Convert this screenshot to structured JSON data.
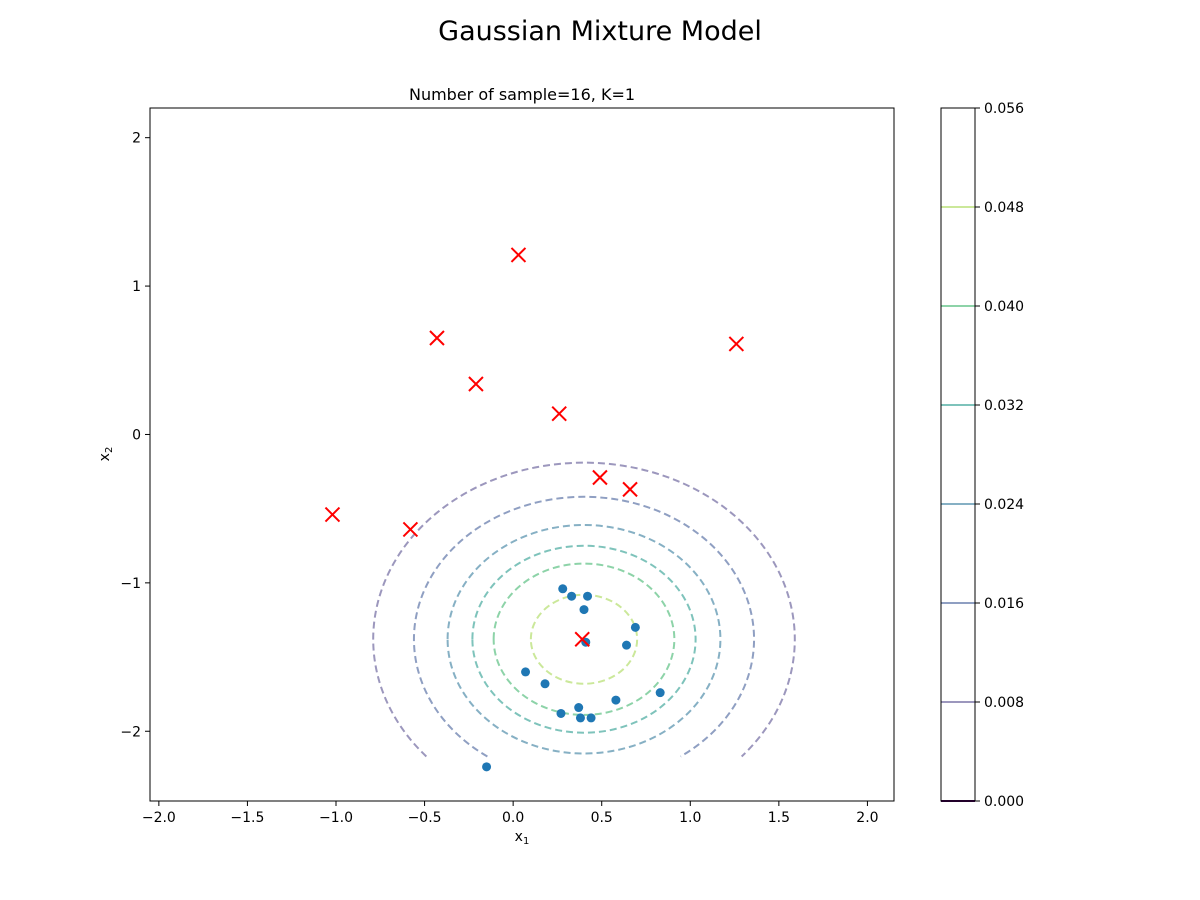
{
  "figure": {
    "suptitle": "Gaussian Mixture Model"
  },
  "chart_data": {
    "type": "scatter",
    "title": "Number of sample=16, K=1",
    "xlabel": "x1",
    "ylabel": "x2",
    "xlabel_main": "x",
    "xlabel_sub": "1",
    "ylabel_main": "x",
    "ylabel_sub": "2",
    "xlim": [
      -2.05,
      2.15
    ],
    "ylim": [
      -2.47,
      2.2
    ],
    "xticks": [
      -2.0,
      -1.5,
      -1.0,
      -0.5,
      0.0,
      0.5,
      1.0,
      1.5,
      2.0
    ],
    "xtick_labels": [
      "−2.0",
      "−1.5",
      "−1.0",
      "−0.5",
      "0.0",
      "0.5",
      "1.0",
      "1.5",
      "2.0"
    ],
    "yticks": [
      -2,
      -1,
      0,
      1,
      2
    ],
    "ytick_labels": [
      "−2",
      "−1",
      "0",
      "1",
      "2"
    ],
    "grid": false,
    "point_color": "#1f77b4",
    "cross_color": "#ff0000",
    "points": [
      {
        "x": 0.28,
        "y": -1.04
      },
      {
        "x": 0.33,
        "y": -1.09
      },
      {
        "x": 0.42,
        "y": -1.09
      },
      {
        "x": 0.4,
        "y": -1.18
      },
      {
        "x": 0.69,
        "y": -1.3
      },
      {
        "x": 0.41,
        "y": -1.4
      },
      {
        "x": 0.64,
        "y": -1.42
      },
      {
        "x": 0.07,
        "y": -1.6
      },
      {
        "x": 0.18,
        "y": -1.68
      },
      {
        "x": 0.83,
        "y": -1.74
      },
      {
        "x": 0.58,
        "y": -1.79
      },
      {
        "x": 0.37,
        "y": -1.84
      },
      {
        "x": 0.27,
        "y": -1.88
      },
      {
        "x": 0.38,
        "y": -1.91
      },
      {
        "x": 0.44,
        "y": -1.91
      },
      {
        "x": -0.15,
        "y": -2.24
      }
    ],
    "crosses": [
      {
        "x": 0.03,
        "y": 1.21
      },
      {
        "x": -0.43,
        "y": 0.65
      },
      {
        "x": 1.26,
        "y": 0.61
      },
      {
        "x": -0.21,
        "y": 0.34
      },
      {
        "x": 0.26,
        "y": 0.14
      },
      {
        "x": 0.49,
        "y": -0.29
      },
      {
        "x": 0.66,
        "y": -0.37
      },
      {
        "x": -1.02,
        "y": -0.54
      },
      {
        "x": -0.58,
        "y": -0.64
      },
      {
        "x": 0.39,
        "y": -1.38
      }
    ],
    "contours": {
      "center": {
        "x": 0.4,
        "y": -1.38
      },
      "levels": [
        {
          "level": 0.008,
          "radius": 1.19,
          "color": "#9c97bd"
        },
        {
          "level": 0.016,
          "radius": 0.96,
          "color": "#8f9fc2"
        },
        {
          "level": 0.024,
          "radius": 0.77,
          "color": "#86b0c4"
        },
        {
          "level": 0.032,
          "radius": 0.63,
          "color": "#7ec3bb"
        },
        {
          "level": 0.04,
          "radius": 0.51,
          "color": "#8dd3a8"
        },
        {
          "level": 0.048,
          "radius": 0.3,
          "color": "#cbe89a"
        }
      ],
      "y_min": -2.17
    },
    "colorbar": {
      "min": 0.0,
      "max": 0.056,
      "ticks": [
        "0.000",
        "0.008",
        "0.016",
        "0.024",
        "0.032",
        "0.040",
        "0.048",
        "0.056"
      ],
      "tick_values": [
        0.0,
        0.008,
        0.016,
        0.024,
        0.032,
        0.04,
        0.048,
        0.056
      ],
      "line_colors": [
        "#440154",
        "#9c97bd",
        "#8f9fc2",
        "#86b0c4",
        "#7ec3bb",
        "#8dd3a8",
        "#cbe89a",
        null
      ]
    }
  }
}
